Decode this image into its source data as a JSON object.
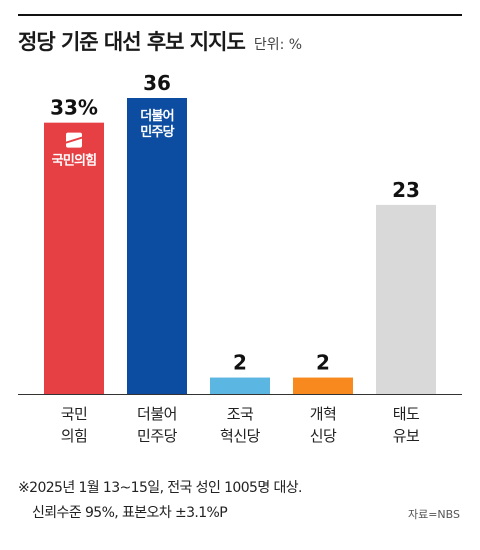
{
  "header": {
    "title": "정당 기준 대선 후보 지지도",
    "unit": "단위: %"
  },
  "chart_data": {
    "type": "bar",
    "title": "정당 기준 대선 후보 지지도",
    "unit": "%",
    "categories": [
      [
        "국민",
        "의힘"
      ],
      [
        "더불어",
        "민주당"
      ],
      [
        "조국",
        "혁신당"
      ],
      [
        "개혁",
        "신당"
      ],
      [
        "태도",
        "유보"
      ]
    ],
    "values": [
      33,
      36,
      2,
      2,
      23
    ],
    "value_labels": [
      "33%",
      "36",
      "2",
      "2",
      "23"
    ],
    "colors": [
      "#e63f44",
      "#0c4da2",
      "#5bb6e2",
      "#f7891e",
      "#d9d9d9"
    ],
    "ylim": [
      0,
      36
    ],
    "grid": false,
    "logos": [
      {
        "bar": 0,
        "text": "국민의힘",
        "icon": "ppp-logo-icon"
      },
      {
        "bar": 1,
        "text": [
          "더불어",
          "민주당"
        ],
        "icon": "dpk-logo-icon"
      }
    ]
  },
  "footnote": {
    "line1": "※2025년 1월 13~15일, 전국 성인 1005명 대상.",
    "line2": "신뢰수준 95%, 표본오차  ±3.1%P"
  },
  "source": "자료=NBS"
}
